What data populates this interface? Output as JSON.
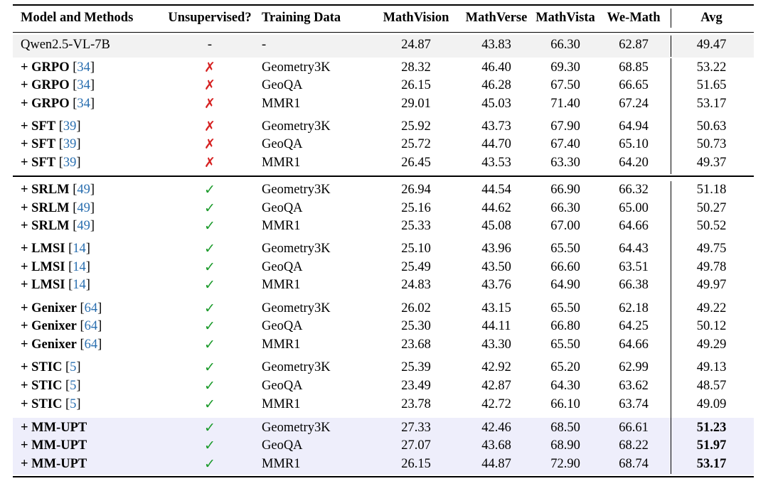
{
  "table": {
    "headers": [
      "Model and Methods",
      "Unsupervised?",
      "Training Data",
      "MathVision",
      "MathVerse",
      "MathVista",
      "We-Math",
      "Avg"
    ],
    "colors": {
      "cross": "#d62020",
      "check": "#1a9a2a",
      "ref": "#2a6fb0",
      "base_shade": "#f2f2f2",
      "ours_shade": "#eeeefb"
    },
    "base": {
      "method": "Qwen2.5-VL-7B",
      "unsupervised": "-",
      "data": "-",
      "mathvision": "24.87",
      "mathverse": "43.83",
      "mathvista": "66.30",
      "wemath": "62.87",
      "avg": "49.47"
    },
    "rows": [
      {
        "plus": "+",
        "method": "GRPO",
        "ref": "34",
        "unsupervised": "✗",
        "data": "Geometry3K",
        "mathvision": "28.32",
        "mathverse": "46.40",
        "mathvista": "69.30",
        "wemath": "68.85",
        "avg": "53.22"
      },
      {
        "plus": "+",
        "method": "GRPO",
        "ref": "34",
        "unsupervised": "✗",
        "data": "GeoQA",
        "mathvision": "26.15",
        "mathverse": "46.28",
        "mathvista": "67.50",
        "wemath": "66.65",
        "avg": "51.65"
      },
      {
        "plus": "+",
        "method": "GRPO",
        "ref": "34",
        "unsupervised": "✗",
        "data": "MMR1",
        "mathvision": "29.01",
        "mathverse": "45.03",
        "mathvista": "71.40",
        "wemath": "67.24",
        "avg": "53.17"
      },
      {
        "plus": "+",
        "method": "SFT",
        "ref": "39",
        "unsupervised": "✗",
        "data": "Geometry3K",
        "mathvision": "25.92",
        "mathverse": "43.73",
        "mathvista": "67.90",
        "wemath": "64.94",
        "avg": "50.63"
      },
      {
        "plus": "+",
        "method": "SFT",
        "ref": "39",
        "unsupervised": "✗",
        "data": "GeoQA",
        "mathvision": "25.72",
        "mathverse": "44.70",
        "mathvista": "67.40",
        "wemath": "65.10",
        "avg": "50.73"
      },
      {
        "plus": "+",
        "method": "SFT",
        "ref": "39",
        "unsupervised": "✗",
        "data": "MMR1",
        "mathvision": "26.45",
        "mathverse": "43.53",
        "mathvista": "63.30",
        "wemath": "64.20",
        "avg": "49.37"
      },
      {
        "plus": "+",
        "method": "SRLM",
        "ref": "49",
        "unsupervised": "✓",
        "data": "Geometry3K",
        "mathvision": "26.94",
        "mathverse": "44.54",
        "mathvista": "66.90",
        "wemath": "66.32",
        "avg": "51.18"
      },
      {
        "plus": "+",
        "method": "SRLM",
        "ref": "49",
        "unsupervised": "✓",
        "data": "GeoQA",
        "mathvision": "25.16",
        "mathverse": "44.62",
        "mathvista": "66.30",
        "wemath": "65.00",
        "avg": "50.27"
      },
      {
        "plus": "+",
        "method": "SRLM",
        "ref": "49",
        "unsupervised": "✓",
        "data": "MMR1",
        "mathvision": "25.33",
        "mathverse": "45.08",
        "mathvista": "67.00",
        "wemath": "64.66",
        "avg": "50.52"
      },
      {
        "plus": "+",
        "method": "LMSI",
        "ref": "14",
        "unsupervised": "✓",
        "data": "Geometry3K",
        "mathvision": "25.10",
        "mathverse": "43.96",
        "mathvista": "65.50",
        "wemath": "64.43",
        "avg": "49.75"
      },
      {
        "plus": "+",
        "method": "LMSI",
        "ref": "14",
        "unsupervised": "✓",
        "data": "GeoQA",
        "mathvision": "25.49",
        "mathverse": "43.50",
        "mathvista": "66.60",
        "wemath": "63.51",
        "avg": "49.78"
      },
      {
        "plus": "+",
        "method": "LMSI",
        "ref": "14",
        "unsupervised": "✓",
        "data": "MMR1",
        "mathvision": "24.83",
        "mathverse": "43.76",
        "mathvista": "64.90",
        "wemath": "66.38",
        "avg": "49.97"
      },
      {
        "plus": "+",
        "method": "Genixer",
        "ref": "64",
        "unsupervised": "✓",
        "data": "Geometry3K",
        "mathvision": "26.02",
        "mathverse": "43.15",
        "mathvista": "65.50",
        "wemath": "62.18",
        "avg": "49.22"
      },
      {
        "plus": "+",
        "method": "Genixer",
        "ref": "64",
        "unsupervised": "✓",
        "data": "GeoQA",
        "mathvision": "25.30",
        "mathverse": "44.11",
        "mathvista": "66.80",
        "wemath": "64.25",
        "avg": "50.12"
      },
      {
        "plus": "+",
        "method": "Genixer",
        "ref": "64",
        "unsupervised": "✓",
        "data": "MMR1",
        "mathvision": "23.68",
        "mathverse": "43.30",
        "mathvista": "65.50",
        "wemath": "64.66",
        "avg": "49.29"
      },
      {
        "plus": "+",
        "method": "STIC",
        "ref": "5",
        "unsupervised": "✓",
        "data": "Geometry3K",
        "mathvision": "25.39",
        "mathverse": "42.92",
        "mathvista": "65.20",
        "wemath": "62.99",
        "avg": "49.13"
      },
      {
        "plus": "+",
        "method": "STIC",
        "ref": "5",
        "unsupervised": "✓",
        "data": "GeoQA",
        "mathvision": "23.49",
        "mathverse": "42.87",
        "mathvista": "64.30",
        "wemath": "63.62",
        "avg": "48.57"
      },
      {
        "plus": "+",
        "method": "STIC",
        "ref": "5",
        "unsupervised": "✓",
        "data": "MMR1",
        "mathvision": "23.78",
        "mathverse": "42.72",
        "mathvista": "66.10",
        "wemath": "63.74",
        "avg": "49.09"
      },
      {
        "plus": "+",
        "method": "MM-UPT",
        "ref": "",
        "unsupervised": "✓",
        "data": "Geometry3K",
        "mathvision": "27.33",
        "mathverse": "42.46",
        "mathvista": "68.50",
        "wemath": "66.61",
        "avg": "51.23"
      },
      {
        "plus": "+",
        "method": "MM-UPT",
        "ref": "",
        "unsupervised": "✓",
        "data": "GeoQA",
        "mathvision": "27.07",
        "mathverse": "43.68",
        "mathvista": "68.90",
        "wemath": "68.22",
        "avg": "51.97"
      },
      {
        "plus": "+",
        "method": "MM-UPT",
        "ref": "",
        "unsupervised": "✓",
        "data": "MMR1",
        "mathvision": "26.15",
        "mathverse": "44.87",
        "mathvista": "72.90",
        "wemath": "68.74",
        "avg": "53.17"
      }
    ]
  }
}
